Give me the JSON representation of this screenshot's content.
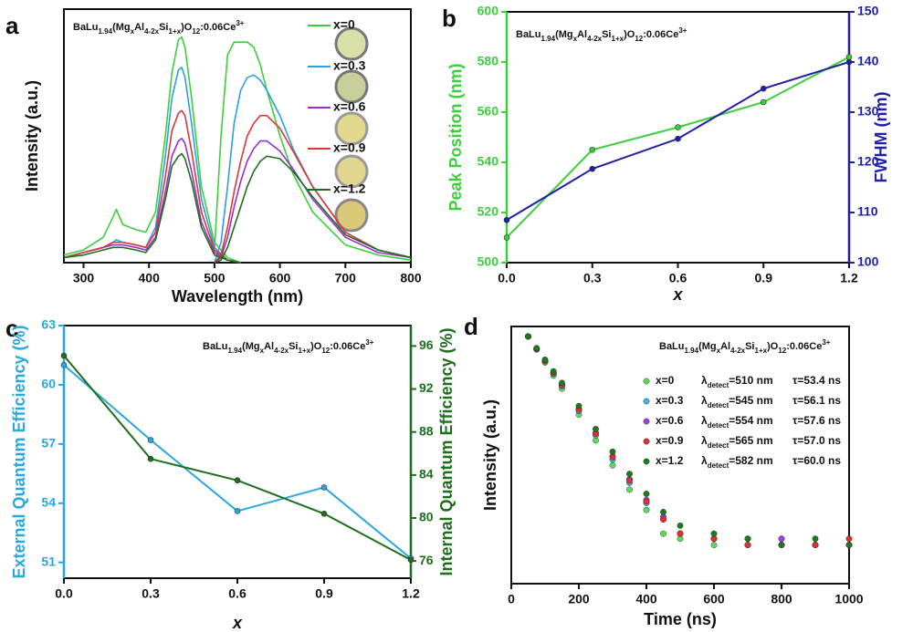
{
  "chart_data": [
    {
      "type": "spectra",
      "panel_label": "a",
      "title": [
        "BaLu",
        "1.94",
        "(Mg",
        "x",
        "Al",
        "4-2x",
        "Si",
        "1+x",
        ")O",
        "12",
        ":0.06Ce",
        "3+"
      ],
      "xlabel": "Wavelength (nm)",
      "ylabel": "Intensity (a.u.)",
      "xlim": [
        270,
        800
      ],
      "xticks": [
        300,
        400,
        500,
        600,
        700,
        800
      ],
      "ylim": [
        0,
        100
      ],
      "excitation_x": [
        270,
        300,
        330,
        345,
        350,
        360,
        380,
        395,
        410,
        425,
        435,
        445,
        450,
        455,
        465,
        480,
        500,
        520,
        540
      ],
      "emission_x": [
        500,
        510,
        520,
        530,
        540,
        550,
        560,
        570,
        580,
        600,
        620,
        650,
        700,
        750,
        800
      ],
      "series": [
        {
          "name": "x=0",
          "color": "#3ccf3c",
          "excitation": [
            3,
            5,
            10,
            18,
            21,
            15,
            13,
            12,
            20,
            50,
            75,
            88,
            89,
            85,
            65,
            30,
            8,
            2,
            0
          ],
          "emission": [
            5,
            50,
            82,
            87,
            87,
            87,
            85,
            78,
            68,
            50,
            35,
            20,
            7,
            3,
            1
          ]
        },
        {
          "name": "x=0.3",
          "color": "#2f9fe0",
          "excitation": [
            2,
            4,
            6,
            8,
            9,
            8,
            7,
            6,
            14,
            42,
            65,
            76,
            77,
            73,
            55,
            25,
            6,
            1,
            0
          ],
          "emission": [
            0,
            8,
            30,
            55,
            68,
            73,
            74,
            72,
            68,
            58,
            45,
            30,
            12,
            5,
            2
          ]
        },
        {
          "name": "x=0.6",
          "color": "#9b30d0",
          "excitation": [
            2,
            4,
            6,
            7,
            7,
            7,
            6,
            5,
            10,
            28,
            42,
            48,
            49,
            47,
            36,
            16,
            4,
            1,
            0
          ],
          "emission": [
            0,
            2,
            10,
            22,
            32,
            40,
            45,
            48,
            48,
            44,
            37,
            25,
            10,
            4,
            2
          ]
        },
        {
          "name": "x=0.9",
          "color": "#d83838",
          "excitation": [
            2,
            4,
            6,
            8,
            8,
            8,
            7,
            6,
            12,
            34,
            52,
            59,
            60,
            58,
            44,
            20,
            5,
            1,
            0
          ],
          "emission": [
            0,
            3,
            14,
            28,
            40,
            50,
            55,
            58,
            58,
            53,
            44,
            30,
            12,
            5,
            2
          ]
        },
        {
          "name": "x=1.2",
          "color": "#1d6e1d",
          "excitation": [
            2,
            3,
            5,
            6,
            6,
            6,
            5,
            4,
            9,
            25,
            38,
            42,
            43,
            41,
            32,
            14,
            3,
            1,
            0
          ],
          "emission": [
            0,
            1,
            6,
            14,
            22,
            30,
            36,
            40,
            42,
            41,
            36,
            26,
            11,
            5,
            2
          ]
        }
      ]
    },
    {
      "type": "dual_line",
      "panel_label": "b",
      "title": [
        "BaLu",
        "1.94",
        "(Mg",
        "x",
        "Al",
        "4-2x",
        "Si",
        "1+x",
        ")O",
        "12",
        ":0.06Ce",
        "3+"
      ],
      "xlabel": "x",
      "ylabel": "Peak Position (nm)",
      "y2label": "FWHM (nm)",
      "x": [
        0,
        0.3,
        0.6,
        0.9,
        1.2
      ],
      "xlim": [
        0,
        1.2
      ],
      "xticks": [
        {
          "value": 0,
          "label": "0.0"
        },
        0.3,
        0.6,
        0.9,
        1.2
      ],
      "ylim": [
        500,
        600
      ],
      "yticks": [
        500,
        520,
        540,
        560,
        580,
        600
      ],
      "y2lim": [
        100,
        150
      ],
      "y2ticks": [
        100,
        110,
        120,
        130,
        140,
        150
      ],
      "series": [
        {
          "color": "#3ccf3c",
          "values": [
            510,
            545,
            554,
            564,
            582
          ]
        },
        {
          "color": "#1f1fa8",
          "axis": "y2",
          "values": [
            108.5,
            118.7,
            124.7,
            134.7,
            140
          ]
        }
      ]
    },
    {
      "type": "dual_line",
      "panel_label": "c",
      "title": [
        "BaLu",
        "1.94",
        "(Mg",
        "x",
        "Al",
        "4-2x",
        "Si",
        "1+x",
        ")O",
        "12",
        ":0.06Ce",
        "3+"
      ],
      "xlabel": "x",
      "ylabel": "External Quantum Efficiency (%)",
      "y2label": "Internal Quantum Efficiency (%)",
      "x": [
        0,
        0.3,
        0.6,
        0.9,
        1.2
      ],
      "xlim": [
        0,
        1.2
      ],
      "xticks": [
        {
          "value": 0,
          "label": "0.0"
        },
        0.3,
        0.6,
        0.9,
        1.2
      ],
      "ylim": [
        50.2,
        63
      ],
      "yticks": [
        51,
        54,
        57,
        60,
        63
      ],
      "y2lim": [
        74.4,
        97.9
      ],
      "y2ticks": [
        76,
        80,
        84,
        88,
        92,
        96
      ],
      "series": [
        {
          "color": "#29a8e0",
          "values": [
            61.0,
            57.2,
            53.6,
            54.8,
            51.2
          ]
        },
        {
          "color": "#1d6e1d",
          "axis": "y2",
          "values": [
            95.1,
            85.5,
            83.5,
            80.4,
            76.1
          ]
        }
      ]
    },
    {
      "type": "decay",
      "panel_label": "d",
      "title": [
        "BaLu",
        "1.94",
        "(Mg",
        "x",
        "Al",
        "4-2x",
        "Si",
        "1+x",
        ")O",
        "12",
        ":0.06Ce",
        "3+"
      ],
      "xlabel": "Time (ns)",
      "ylabel": "Intensity (a.u.)",
      "xlim": [
        0,
        1000
      ],
      "xticks": [
        0,
        200,
        400,
        600,
        800,
        1000
      ],
      "ylim": [
        1,
        10000
      ],
      "log_scale": true,
      "x": [
        50,
        75,
        100,
        125,
        150,
        200,
        250,
        300,
        350,
        400,
        450,
        500,
        600,
        700,
        800,
        900,
        1000
      ],
      "series": [
        {
          "name": "x=0",
          "detect_label": [
            "λ",
            "detect",
            "=510 nm"
          ],
          "tau_label": "τ=53.4 ns",
          "color": "#5fd85f",
          "values": [
            7004,
            4384,
            2749,
            1722,
            1079,
            425,
            169,
            69,
            29,
            14,
            6,
            5,
            4,
            5,
            4,
            4,
            4
          ]
        },
        {
          "name": "x=0.3",
          "detect_label": [
            "λ",
            "detect",
            "=545 nm"
          ],
          "tau_label": "τ=56.1 ns",
          "color": "#3fb4e4",
          "values": [
            7004,
            4484,
            2874,
            1844,
            1182,
            486,
            202,
            85,
            37,
            18,
            10,
            6,
            5,
            4,
            5,
            4,
            4
          ]
        },
        {
          "name": "x=0.6",
          "detect_label": [
            "λ",
            "detect",
            "=554 nm"
          ],
          "tau_label": "τ=57.6 ns",
          "color": "#a040e0",
          "values": [
            7004,
            4540,
            2944,
            1910,
            1239,
            522,
            222,
            96,
            42,
            20,
            11,
            6,
            5,
            4,
            5,
            4,
            4
          ]
        },
        {
          "name": "x=0.9",
          "detect_label": [
            "λ",
            "detect",
            "=565 nm"
          ],
          "tau_label": "τ=57.0 ns",
          "color": "#e03030",
          "values": [
            7004,
            4530,
            2930,
            1895,
            1225,
            510,
            215,
            93,
            40,
            19,
            10,
            6,
            5,
            4,
            4,
            4,
            5
          ]
        },
        {
          "name": "x=1.2",
          "detect_label": [
            "λ",
            "detect",
            "=582 nm"
          ],
          "tau_label": "τ=60.0 ns",
          "color": "#1d7a1d",
          "values": [
            7004,
            4617,
            3046,
            2009,
            1326,
            579,
            254,
            113,
            51,
            25,
            13,
            8,
            6,
            5,
            4,
            5,
            4
          ]
        }
      ]
    }
  ]
}
